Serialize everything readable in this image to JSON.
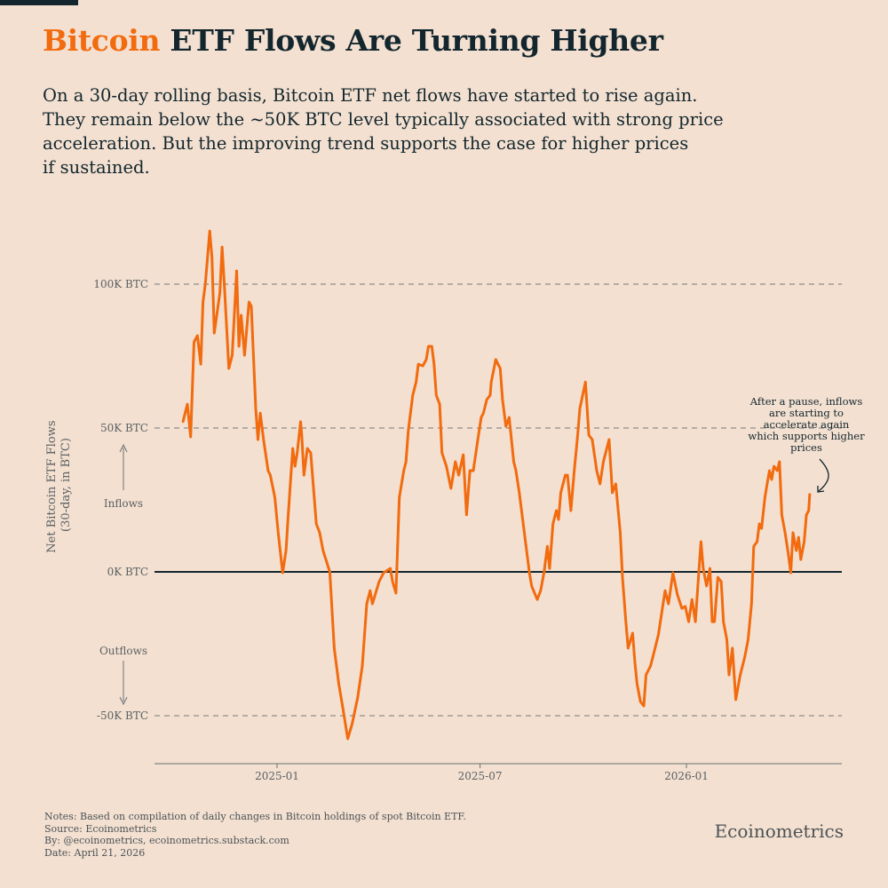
{
  "header": {
    "title_highlight": "Bitcoin",
    "title_rest": " ETF Flows Are Turning Higher",
    "subtitle_lines": [
      "On a 30-day rolling basis, Bitcoin ETF net flows have started to rise again.",
      "They remain below the ~50K BTC level typically associated with strong price",
      "acceleration. But the improving trend supports the case for higher prices",
      "if sustained."
    ]
  },
  "colors": {
    "background": "#f3e0d0",
    "line": "#f26b0f",
    "text": "#13262e",
    "grid": "#777777"
  },
  "chart_data": {
    "type": "line",
    "ylabel": "Net Bitcoin ETF Flows\n(30-day, in BTC)",
    "ylabel_lines": [
      "Net Bitcoin ETF Flows",
      "(30-day, in BTC)"
    ],
    "y_ticks": [
      {
        "value": 100,
        "label": "100K BTC"
      },
      {
        "value": 50,
        "label": "50K BTC"
      },
      {
        "value": 0,
        "label": "0K BTC"
      },
      {
        "value": -50,
        "label": "-50K BTC"
      }
    ],
    "x_ticks": [
      {
        "value": "2025-01-01",
        "label": "2025-01"
      },
      {
        "value": "2025-07-01",
        "label": "2025-07"
      },
      {
        "value": "2026-01-01",
        "label": "2026-01"
      }
    ],
    "ylim": [
      -65,
      125
    ],
    "xlim": [
      "2024-09-25",
      "2026-05-22"
    ],
    "grid": "horizontal dashed at labeled ticks",
    "direction_labels": {
      "up": "Inflows",
      "down": "Outflows"
    },
    "annotation": {
      "lines": [
        "After a pause, inflows",
        "are starting to",
        "accelerate again",
        "which supports higher",
        "prices"
      ],
      "date": "2026-04-21"
    },
    "series": [
      {
        "unit": "K BTC",
        "points": [
          [
            "2024-10-09",
            52
          ],
          [
            "2024-10-13",
            58.3
          ],
          [
            "2024-10-16",
            46.9
          ],
          [
            "2024-10-19",
            79.9
          ],
          [
            "2024-10-22",
            82.1
          ],
          [
            "2024-10-25",
            72.2
          ],
          [
            "2024-10-27",
            93.8
          ],
          [
            "2024-10-29",
            100
          ],
          [
            "2024-11-02",
            118.5
          ],
          [
            "2024-11-04",
            109.2
          ],
          [
            "2024-11-06",
            83
          ],
          [
            "2024-11-11",
            96.9
          ],
          [
            "2024-11-13",
            112.9
          ],
          [
            "2024-11-15",
            100
          ],
          [
            "2024-11-19",
            70.7
          ],
          [
            "2024-11-22",
            75.3
          ],
          [
            "2024-11-26",
            104.6
          ],
          [
            "2024-11-28",
            78.4
          ],
          [
            "2024-11-30",
            89.2
          ],
          [
            "2024-12-03",
            75.3
          ],
          [
            "2024-12-07",
            93.8
          ],
          [
            "2024-12-09",
            92.3
          ],
          [
            "2024-12-13",
            56.8
          ],
          [
            "2024-12-15",
            46
          ],
          [
            "2024-12-17",
            55.2
          ],
          [
            "2024-12-20",
            46
          ],
          [
            "2024-12-24",
            35.2
          ],
          [
            "2024-12-26",
            33.6
          ],
          [
            "2024-12-30",
            25.9
          ],
          [
            "2025-01-02",
            13.6
          ],
          [
            "2025-01-06",
            -0.3
          ],
          [
            "2025-01-09",
            7.4
          ],
          [
            "2025-01-11",
            19.8
          ],
          [
            "2025-01-15",
            42.9
          ],
          [
            "2025-01-17",
            36.7
          ],
          [
            "2025-01-19",
            41.4
          ],
          [
            "2025-01-22",
            52.2
          ],
          [
            "2025-01-23",
            47.5
          ],
          [
            "2025-01-25",
            33.6
          ],
          [
            "2025-01-28",
            42.9
          ],
          [
            "2025-01-31",
            41.4
          ],
          [
            "2025-02-05",
            16.7
          ],
          [
            "2025-02-08",
            13.6
          ],
          [
            "2025-02-11",
            7.4
          ],
          [
            "2025-02-17",
            0
          ],
          [
            "2025-02-21",
            -26.5
          ],
          [
            "2025-02-25",
            -38.9
          ],
          [
            "2025-03-01",
            -48.1
          ],
          [
            "2025-03-05",
            -58
          ],
          [
            "2025-03-09",
            -52.8
          ],
          [
            "2025-03-14",
            -43.5
          ],
          [
            "2025-03-18",
            -32.7
          ],
          [
            "2025-03-22",
            -11.1
          ],
          [
            "2025-03-25",
            -6.5
          ],
          [
            "2025-03-27",
            -11.1
          ],
          [
            "2025-04-02",
            -3.4
          ],
          [
            "2025-04-06",
            -0.3
          ],
          [
            "2025-04-12",
            1.2
          ],
          [
            "2025-04-14",
            -3.4
          ],
          [
            "2025-04-17",
            -7.4
          ],
          [
            "2025-04-20",
            25.9
          ],
          [
            "2025-04-24",
            35.2
          ],
          [
            "2025-04-26",
            38.3
          ],
          [
            "2025-04-28",
            49.1
          ],
          [
            "2025-05-02",
            61.4
          ],
          [
            "2025-05-05",
            66
          ],
          [
            "2025-05-07",
            72.2
          ],
          [
            "2025-05-11",
            71.6
          ],
          [
            "2025-05-14",
            73.8
          ],
          [
            "2025-05-16",
            78.4
          ],
          [
            "2025-05-19",
            78.4
          ],
          [
            "2025-05-21",
            72.2
          ],
          [
            "2025-05-23",
            61.4
          ],
          [
            "2025-05-26",
            58.3
          ],
          [
            "2025-05-28",
            41.4
          ],
          [
            "2025-06-01",
            36.7
          ],
          [
            "2025-06-05",
            29
          ],
          [
            "2025-06-09",
            38.3
          ],
          [
            "2025-06-12",
            33.6
          ],
          [
            "2025-06-16",
            40.7
          ],
          [
            "2025-06-19",
            19.8
          ],
          [
            "2025-06-22",
            35.2
          ],
          [
            "2025-06-25",
            35.2
          ],
          [
            "2025-06-29",
            46
          ],
          [
            "2025-07-02",
            53.7
          ],
          [
            "2025-07-04",
            55.2
          ],
          [
            "2025-07-07",
            59.9
          ],
          [
            "2025-07-10",
            61.4
          ],
          [
            "2025-07-11",
            66
          ],
          [
            "2025-07-15",
            73.8
          ],
          [
            "2025-07-19",
            70.7
          ],
          [
            "2025-07-21",
            59.9
          ],
          [
            "2025-07-24",
            50.6
          ],
          [
            "2025-07-27",
            53.7
          ],
          [
            "2025-07-31",
            38.3
          ],
          [
            "2025-08-02",
            35.2
          ],
          [
            "2025-08-05",
            27.5
          ],
          [
            "2025-08-08",
            18.2
          ],
          [
            "2025-08-11",
            8.9
          ],
          [
            "2025-08-14",
            -0.3
          ],
          [
            "2025-08-16",
            -4.9
          ],
          [
            "2025-08-21",
            -9.6
          ],
          [
            "2025-08-24",
            -6.5
          ],
          [
            "2025-08-27",
            -0.3
          ],
          [
            "2025-08-30",
            8.9
          ],
          [
            "2025-09-01",
            1.2
          ],
          [
            "2025-09-04",
            16.7
          ],
          [
            "2025-09-07",
            21.3
          ],
          [
            "2025-09-09",
            18.2
          ],
          [
            "2025-09-11",
            27.5
          ],
          [
            "2025-09-15",
            33.6
          ],
          [
            "2025-09-17",
            33.6
          ],
          [
            "2025-09-20",
            21.3
          ],
          [
            "2025-09-23",
            35.2
          ],
          [
            "2025-09-26",
            47.5
          ],
          [
            "2025-09-28",
            56.8
          ],
          [
            "2025-10-03",
            66
          ],
          [
            "2025-10-06",
            47.5
          ],
          [
            "2025-10-09",
            46
          ],
          [
            "2025-10-13",
            35.2
          ],
          [
            "2025-10-16",
            30.6
          ],
          [
            "2025-10-19",
            38.3
          ],
          [
            "2025-10-24",
            46
          ],
          [
            "2025-10-27",
            27.5
          ],
          [
            "2025-10-30",
            30.6
          ],
          [
            "2025-11-03",
            13.6
          ],
          [
            "2025-11-05",
            -1.9
          ],
          [
            "2025-11-08",
            -17.3
          ],
          [
            "2025-11-10",
            -26.5
          ],
          [
            "2025-11-14",
            -21.3
          ],
          [
            "2025-11-16",
            -31.2
          ],
          [
            "2025-11-18",
            -38.9
          ],
          [
            "2025-11-21",
            -45.1
          ],
          [
            "2025-11-24",
            -46.6
          ],
          [
            "2025-11-26",
            -35.8
          ],
          [
            "2025-11-30",
            -32.7
          ],
          [
            "2025-12-03",
            -28.1
          ],
          [
            "2025-12-07",
            -21.9
          ],
          [
            "2025-12-10",
            -14.2
          ],
          [
            "2025-12-13",
            -6.5
          ],
          [
            "2025-12-16",
            -11.1
          ],
          [
            "2025-12-20",
            -0.3
          ],
          [
            "2025-12-24",
            -8
          ],
          [
            "2025-12-28",
            -12.7
          ],
          [
            "2025-12-31",
            -12
          ],
          [
            "2026-01-03",
            -17.3
          ],
          [
            "2026-01-06",
            -9.6
          ],
          [
            "2026-01-09",
            -17.3
          ],
          [
            "2026-01-12",
            -0.3
          ],
          [
            "2026-01-14",
            10.5
          ],
          [
            "2026-01-16",
            1.2
          ],
          [
            "2026-01-19",
            -4.9
          ],
          [
            "2026-01-22",
            1.2
          ],
          [
            "2026-01-24",
            -17.3
          ],
          [
            "2026-01-26",
            -17.3
          ],
          [
            "2026-01-29",
            -1.9
          ],
          [
            "2026-02-01",
            -3.4
          ],
          [
            "2026-02-03",
            -17.3
          ],
          [
            "2026-02-06",
            -23.5
          ],
          [
            "2026-02-08",
            -35.8
          ],
          [
            "2026-02-11",
            -26.5
          ],
          [
            "2026-02-14",
            -44.4
          ],
          [
            "2026-02-18",
            -35.8
          ],
          [
            "2026-02-22",
            -29.6
          ],
          [
            "2026-02-25",
            -23.5
          ],
          [
            "2026-02-28",
            -11.1
          ],
          [
            "2026-03-02",
            8.9
          ],
          [
            "2026-03-05",
            10.5
          ],
          [
            "2026-03-07",
            16.7
          ],
          [
            "2026-03-09",
            15.1
          ],
          [
            "2026-03-12",
            25.9
          ],
          [
            "2026-03-14",
            30.6
          ],
          [
            "2026-03-16",
            35.2
          ],
          [
            "2026-03-18",
            32.1
          ],
          [
            "2026-03-20",
            36.7
          ],
          [
            "2026-03-23",
            35.2
          ],
          [
            "2026-03-25",
            38.3
          ],
          [
            "2026-03-27",
            19.8
          ],
          [
            "2026-03-30",
            13.6
          ],
          [
            "2026-04-02",
            5.9
          ],
          [
            "2026-04-04",
            -0.3
          ],
          [
            "2026-04-06",
            13.6
          ],
          [
            "2026-04-09",
            7.4
          ],
          [
            "2026-04-11",
            12
          ],
          [
            "2026-04-13",
            4.3
          ],
          [
            "2026-04-16",
            10.5
          ],
          [
            "2026-04-18",
            19.8
          ],
          [
            "2026-04-20",
            21.3
          ],
          [
            "2026-04-21",
            27.2
          ]
        ]
      }
    ]
  },
  "footer": {
    "notes": [
      "Notes: Based on compilation of daily changes in Bitcoin holdings of spot Bitcoin ETF.",
      "Source: Ecoinometrics",
      "By: @ecoinometrics, ecoinometrics.substack.com",
      "Date: April 21, 2026"
    ],
    "brand": "Ecoinometrics"
  }
}
